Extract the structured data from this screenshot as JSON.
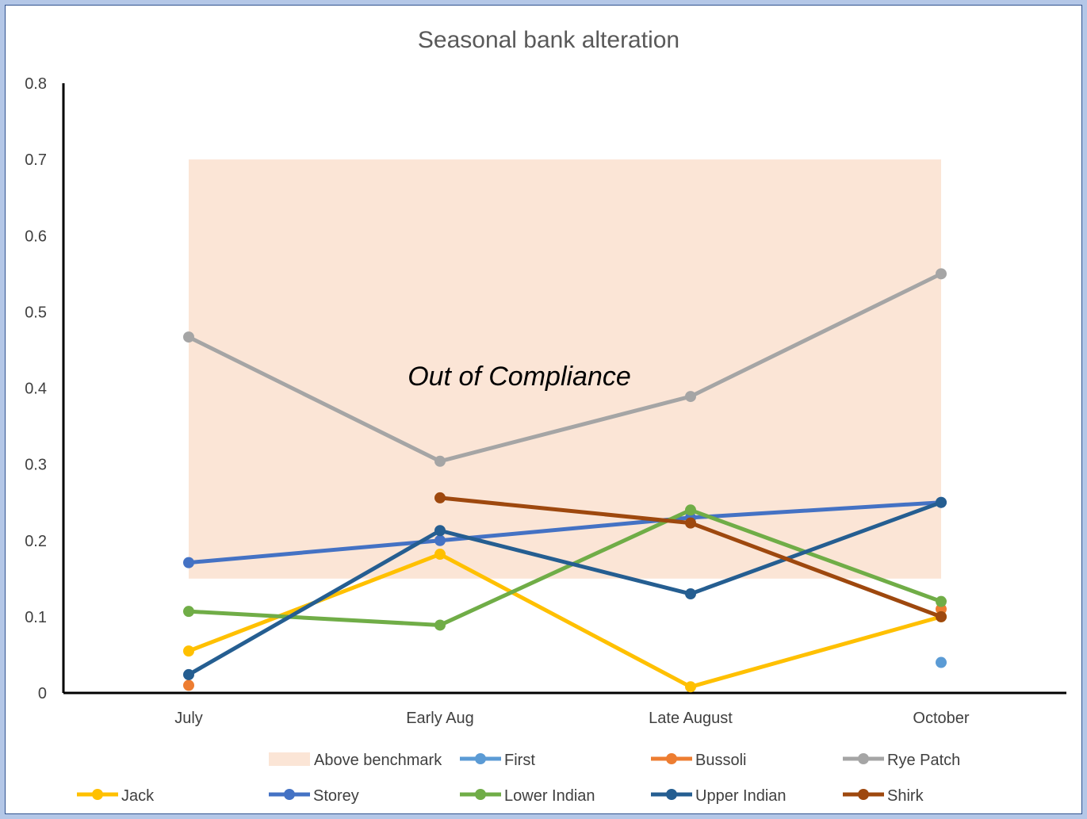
{
  "chart_data": {
    "type": "line",
    "title": "Seasonal bank alteration",
    "annotation": "Out of Compliance",
    "categories": [
      "July",
      "Early Aug",
      "Late August",
      "October"
    ],
    "ylim": [
      0,
      0.8
    ],
    "yticks": [
      "0",
      "0.1",
      "0.2",
      "0.3",
      "0.4",
      "0.5",
      "0.6",
      "0.7",
      "0.8"
    ],
    "grid": false,
    "legend_position": "bottom",
    "benchmark_band": {
      "name": "Above benchmark",
      "range": [
        0.15,
        0.7
      ],
      "color": "#fbe5d6"
    },
    "series": [
      {
        "name": "First",
        "color": "#5b9bd5",
        "values": [
          null,
          null,
          null,
          0.04
        ]
      },
      {
        "name": "Bussoli",
        "color": "#ed7d31",
        "values": [
          0.01,
          null,
          null,
          0.11
        ]
      },
      {
        "name": "Rye Patch",
        "color": "#a5a5a5",
        "values": [
          0.467,
          0.304,
          0.389,
          0.55
        ]
      },
      {
        "name": "Jack",
        "color": "#ffc000",
        "values": [
          0.055,
          0.182,
          0.008,
          0.1
        ]
      },
      {
        "name": "Storey",
        "color": "#4472c4",
        "values": [
          0.171,
          0.2,
          0.23,
          0.25
        ]
      },
      {
        "name": "Lower Indian",
        "color": "#70ad47",
        "values": [
          0.107,
          0.089,
          0.24,
          0.12
        ]
      },
      {
        "name": "Upper Indian",
        "color": "#255e91",
        "values": [
          0.024,
          0.213,
          0.13,
          0.25
        ]
      },
      {
        "name": "Shirk",
        "color": "#9e480e",
        "values": [
          null,
          0.256,
          0.223,
          0.1
        ]
      }
    ]
  }
}
